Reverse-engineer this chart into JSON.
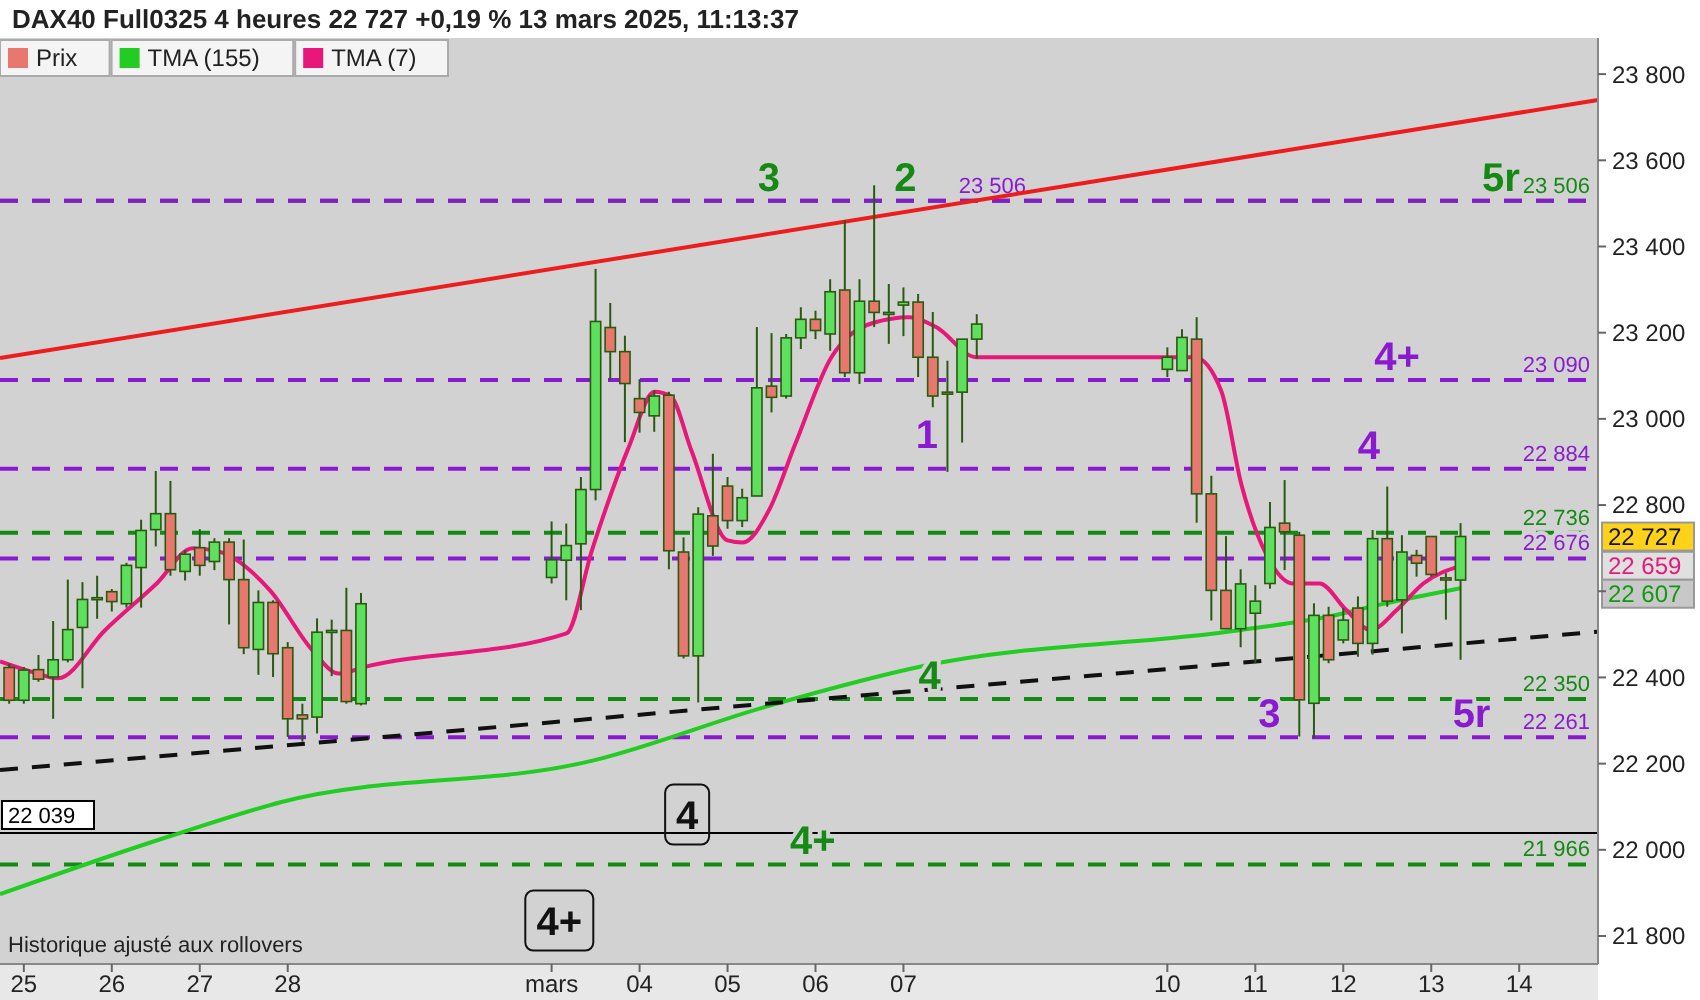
{
  "chart_data": {
    "type": "candlestick",
    "title": "DAX40 Full0325 4 heures 22 727 +0,19 % 13 mars 2025, 11:13:37",
    "legend": "top left",
    "xlim": [
      "2025-02-24T17:30",
      "2025-03-14T21:30"
    ],
    "ylim": [
      21735,
      23972
    ],
    "xticks": [
      {
        "value": "2025-02-25",
        "label": "25"
      },
      {
        "value": "2025-02-26",
        "label": "26"
      },
      {
        "value": "2025-02-27",
        "label": "27"
      },
      {
        "value": "2025-02-28",
        "label": "28"
      },
      {
        "value": "2025-03-03",
        "label": "mars"
      },
      {
        "value": "2025-03-04",
        "label": "04"
      },
      {
        "value": "2025-03-05",
        "label": "05"
      },
      {
        "value": "2025-03-06",
        "label": "06"
      },
      {
        "value": "2025-03-07",
        "label": "07"
      },
      {
        "value": "2025-03-10",
        "label": "10"
      },
      {
        "value": "2025-03-11",
        "label": "11"
      },
      {
        "value": "2025-03-12",
        "label": "12"
      },
      {
        "value": "2025-03-13",
        "label": "13"
      },
      {
        "value": "2025-03-14",
        "label": "14"
      }
    ],
    "yticks": [
      {
        "value": 21800,
        "label": "21 800"
      },
      {
        "value": 22000,
        "label": "22 000"
      },
      {
        "value": 22200,
        "label": "22 200"
      },
      {
        "value": 22400,
        "label": "22 400"
      },
      {
        "value": 22600,
        "label": null
      },
      {
        "value": 22800,
        "label": "22 800"
      },
      {
        "value": 23000,
        "label": "23 000"
      },
      {
        "value": 23200,
        "label": "23 200"
      },
      {
        "value": 23400,
        "label": "23 400"
      },
      {
        "value": 23600,
        "label": "23 600"
      },
      {
        "value": 23800,
        "label": "23 800"
      }
    ],
    "series": [
      {
        "name": "Prix",
        "color": "#e8776d",
        "x": [
          "2025-02-24T20:00",
          "2025-02-25T00:00",
          "2025-02-25T04:00",
          "2025-02-25T08:00",
          "2025-02-25T12:00",
          "2025-02-25T16:00",
          "2025-02-25T20:00",
          "2025-02-26T00:00",
          "2025-02-26T04:00",
          "2025-02-26T08:00",
          "2025-02-26T12:00",
          "2025-02-26T16:00",
          "2025-02-26T20:00",
          "2025-02-27T00:00",
          "2025-02-27T04:00",
          "2025-02-27T08:00",
          "2025-02-27T12:00",
          "2025-02-27T16:00",
          "2025-02-27T20:00",
          "2025-02-28T00:00",
          "2025-02-28T04:00",
          "2025-02-28T08:00",
          "2025-02-28T12:00",
          "2025-02-28T16:00",
          "2025-02-28T20:00",
          "2025-03-03T00:00",
          "2025-03-03T04:00",
          "2025-03-03T08:00",
          "2025-03-03T12:00",
          "2025-03-03T16:00",
          "2025-03-03T20:00",
          "2025-03-04T00:00",
          "2025-03-04T04:00",
          "2025-03-04T08:00",
          "2025-03-04T12:00",
          "2025-03-04T16:00",
          "2025-03-04T20:00",
          "2025-03-05T00:00",
          "2025-03-05T04:00",
          "2025-03-05T08:00",
          "2025-03-05T12:00",
          "2025-03-05T16:00",
          "2025-03-05T20:00",
          "2025-03-06T00:00",
          "2025-03-06T04:00",
          "2025-03-06T08:00",
          "2025-03-06T12:00",
          "2025-03-06T16:00",
          "2025-03-06T20:00",
          "2025-03-07T00:00",
          "2025-03-07T04:00",
          "2025-03-07T08:00",
          "2025-03-07T12:00",
          "2025-03-07T16:00",
          "2025-03-07T20:00",
          "2025-03-10T00:00",
          "2025-03-10T04:00",
          "2025-03-10T08:00",
          "2025-03-10T12:00",
          "2025-03-10T16:00",
          "2025-03-10T20:00",
          "2025-03-11T00:00",
          "2025-03-11T04:00",
          "2025-03-11T08:00",
          "2025-03-11T12:00",
          "2025-03-11T16:00",
          "2025-03-11T20:00",
          "2025-03-12T00:00",
          "2025-03-12T04:00",
          "2025-03-12T08:00",
          "2025-03-12T12:00",
          "2025-03-12T16:00",
          "2025-03-12T20:00",
          "2025-03-13T00:00",
          "2025-03-13T04:00",
          "2025-03-13T08:00"
        ],
        "ohlc": [
          [
            22423,
            22432,
            22339,
            22347
          ],
          [
            22347,
            22424,
            22339,
            22417
          ],
          [
            22418,
            22452,
            22390,
            22396
          ],
          [
            22401,
            22531,
            22304,
            22441
          ],
          [
            22441,
            22627,
            22435,
            22511
          ],
          [
            22516,
            22621,
            22375,
            22581
          ],
          [
            22581,
            22636,
            22536,
            22585
          ],
          [
            22599,
            22605,
            22553,
            22576
          ],
          [
            22571,
            22666,
            22562,
            22660
          ],
          [
            22655,
            22766,
            22562,
            22741
          ],
          [
            22743,
            22879,
            22704,
            22780
          ],
          [
            22780,
            22856,
            22636,
            22650
          ],
          [
            22646,
            22695,
            22625,
            22686
          ],
          [
            22701,
            22744,
            22636,
            22660
          ],
          [
            22669,
            22723,
            22649,
            22714
          ],
          [
            22714,
            22723,
            22523,
            22627
          ],
          [
            22627,
            22720,
            22454,
            22469
          ],
          [
            22465,
            22602,
            22406,
            22574
          ],
          [
            22574,
            22579,
            22401,
            22455
          ],
          [
            22469,
            22482,
            22262,
            22304
          ],
          [
            22313,
            22339,
            22251,
            22304
          ],
          [
            22308,
            22537,
            22270,
            22505
          ],
          [
            22505,
            22534,
            22403,
            22509
          ],
          [
            22509,
            22608,
            22339,
            22344
          ],
          [
            22339,
            22596,
            22335,
            22571
          ],
          [
            22632,
            22762,
            22618,
            22673
          ],
          [
            22672,
            22757,
            22579,
            22706
          ],
          [
            22710,
            22865,
            22556,
            22836
          ],
          [
            22836,
            23348,
            22811,
            23226
          ],
          [
            23212,
            23269,
            23091,
            23156
          ],
          [
            23156,
            23193,
            22946,
            23082
          ],
          [
            23047,
            23092,
            22968,
            23015
          ],
          [
            23007,
            23066,
            22970,
            23053
          ],
          [
            23055,
            23063,
            22651,
            22694
          ],
          [
            22691,
            22725,
            22444,
            22450
          ],
          [
            22450,
            22795,
            22342,
            22779
          ],
          [
            22775,
            22919,
            22682,
            22705
          ],
          [
            22844,
            22865,
            22745,
            22764
          ],
          [
            22764,
            22838,
            22749,
            22817
          ],
          [
            22821,
            23213,
            22821,
            23072
          ],
          [
            23076,
            23199,
            23015,
            23050
          ],
          [
            23053,
            23197,
            23047,
            23188
          ],
          [
            23188,
            23259,
            23162,
            23231
          ],
          [
            23231,
            23251,
            23185,
            23205
          ],
          [
            23197,
            23324,
            23158,
            23295
          ],
          [
            23299,
            23460,
            23097,
            23107
          ],
          [
            23107,
            23324,
            23081,
            23273
          ],
          [
            23273,
            23542,
            23213,
            23247
          ],
          [
            23243,
            23313,
            23174,
            23247
          ],
          [
            23264,
            23305,
            23192,
            23271
          ],
          [
            23271,
            23290,
            23097,
            23143
          ],
          [
            23143,
            23248,
            23027,
            23053
          ],
          [
            23062,
            23135,
            22877,
            23058
          ],
          [
            23062,
            23185,
            22945,
            23185
          ],
          [
            23185,
            23243,
            23140,
            23220
          ],
          [
            23115,
            23166,
            23097,
            23143
          ],
          [
            23112,
            23208,
            23112,
            23189
          ],
          [
            23185,
            23236,
            22759,
            22826
          ],
          [
            22826,
            22868,
            22532,
            22602
          ],
          [
            22602,
            22728,
            22512,
            22513
          ],
          [
            22513,
            22651,
            22470,
            22617
          ],
          [
            22549,
            22614,
            22433,
            22577
          ],
          [
            22618,
            22807,
            22606,
            22748
          ],
          [
            22758,
            22858,
            22649,
            22738
          ],
          [
            22730,
            22738,
            22263,
            22348
          ],
          [
            22340,
            22572,
            22260,
            22544
          ],
          [
            22544,
            22564,
            22433,
            22441
          ],
          [
            22487,
            22561,
            22479,
            22533
          ],
          [
            22561,
            22588,
            22448,
            22479
          ],
          [
            22479,
            22742,
            22453,
            22722
          ],
          [
            22722,
            22843,
            22564,
            22577
          ],
          [
            22580,
            22730,
            22502,
            22691
          ],
          [
            22683,
            22696,
            22634,
            22665
          ],
          [
            22727,
            22727,
            22634,
            22639
          ],
          [
            22631,
            22642,
            22534,
            22626
          ],
          [
            22626,
            22758,
            22441,
            22727
          ]
        ],
        "colors": [
          "#e8776d",
          "#5ee05e",
          "#e8776d",
          "#5ee05e",
          "#5ee05e",
          "#5ee05e",
          "#5ee05e",
          "#e8776d",
          "#5ee05e",
          "#5ee05e",
          "#5ee05e",
          "#e8776d",
          "#5ee05e",
          "#e8776d",
          "#5ee05e",
          "#e8776d",
          "#e8776d",
          "#5ee05e",
          "#e8776d",
          "#e8776d",
          "#e8776d",
          "#5ee05e",
          "#5ee05e",
          "#e8776d",
          "#5ee05e",
          "#5ee05e",
          "#5ee05e",
          "#5ee05e",
          "#5ee05e",
          "#e8776d",
          "#e8776d",
          "#e8776d",
          "#5ee05e",
          "#e8776d",
          "#e8776d",
          "#5ee05e",
          "#e8776d",
          "#e8776d",
          "#5ee05e",
          "#5ee05e",
          "#e8776d",
          "#5ee05e",
          "#5ee05e",
          "#e8776d",
          "#5ee05e",
          "#e8776d",
          "#5ee05e",
          "#e8776d",
          "#5ee05e",
          "#5ee05e",
          "#e8776d",
          "#e8776d",
          "#e8776d",
          "#5ee05e",
          "#5ee05e",
          "#5ee05e",
          "#5ee05e",
          "#e8776d",
          "#e8776d",
          "#e8776d",
          "#5ee05e",
          "#5ee05e",
          "#5ee05e",
          "#e8776d",
          "#e8776d",
          "#5ee05e",
          "#e8776d",
          "#5ee05e",
          "#e8776d",
          "#5ee05e",
          "#e8776d",
          "#5ee05e",
          "#e8776d",
          "#e8776d",
          "#e8776d",
          "#5ee05e"
        ]
      },
      {
        "name": "TMA (155)",
        "type": "line",
        "color": "#22cc22",
        "x": [
          "2025-02-24T17:30",
          "2025-02-26T16:00",
          "2025-02-27T22:20",
          "2025-03-03T11:45",
          "2025-03-05T11:15",
          "2025-03-07T05:45",
          "2025-03-10T20:10",
          "2025-03-11T20:25",
          "2025-03-12T10:35",
          "2025-03-13T08:00"
        ],
        "values": [
          21897,
          22032,
          22111,
          22208,
          22334,
          22427,
          22510,
          22542,
          22570,
          22607
        ]
      },
      {
        "name": "TMA (7)",
        "type": "line",
        "color": "#e8177a",
        "x": [
          "2025-02-24T17:30",
          "2025-02-25T02:10",
          "2025-02-25T09:20",
          "2025-02-25T22:05",
          "2025-02-26T12:15",
          "2025-02-26T22:05",
          "2025-02-27T05:15",
          "2025-02-27T19:10",
          "2025-02-28T06:45",
          "2025-02-28T13:55",
          "2025-02-28T20:50",
          "2025-03-03T04:05",
          "2025-03-03T11:00",
          "2025-03-03T21:05",
          "2025-03-04T04:05",
          "2025-03-04T08:25",
          "2025-03-04T14:10",
          "2025-03-05T00:00",
          "2025-03-05T04:05",
          "2025-03-05T11:15",
          "2025-03-05T18:30",
          "2025-03-06T04:20",
          "2025-03-06T15:50",
          "2025-03-07T01:40",
          "2025-03-07T08:55",
          "2025-03-07T19:55",
          "2025-03-10T07:25",
          "2025-03-10T14:40",
          "2025-03-10T20:10",
          "2025-03-11T03:20",
          "2025-03-11T10:20",
          "2025-03-11T17:30",
          "2025-03-12T00:45",
          "2025-03-12T07:25",
          "2025-03-12T14:40",
          "2025-03-12T21:50",
          "2025-03-13T08:00"
        ],
        "values": [
          22437,
          22413,
          22398,
          22509,
          22618,
          22700,
          22692,
          22602,
          22463,
          22409,
          22424,
          22502,
          22695,
          22935,
          23063,
          23053,
          22926,
          22718,
          22713,
          22787,
          22942,
          23143,
          23223,
          23236,
          23213,
          23143,
          23143,
          23066,
          22849,
          22680,
          22618,
          22618,
          22557,
          22510,
          22557,
          22618,
          22659
        ]
      },
      {
        "type": "line",
        "color": "#ee1c1c",
        "x": [
          "2025-02-24T17:30",
          "2025-03-14T21:30"
        ],
        "values": [
          23141,
          23740
        ]
      },
      {
        "type": "line",
        "color": "#111111",
        "line_style": "dashed",
        "x": [
          "2025-02-24T17:30",
          "2025-03-14T21:30"
        ],
        "values": [
          22185,
          22506
        ]
      }
    ],
    "ref_lines": [
      {
        "axis": "y",
        "value": 23506,
        "label": "23 506",
        "color": "#148a14",
        "line_style": "dashed"
      },
      {
        "axis": "y",
        "value": 22736,
        "label": "22 736",
        "color": "#148a14",
        "line_style": "dashed"
      },
      {
        "axis": "y",
        "value": 22350,
        "label": "22 350",
        "color": "#148a14",
        "line_style": "dashed"
      },
      {
        "axis": "y",
        "value": 21966,
        "label": "21 966",
        "color": "#148a14",
        "line_style": "dashed"
      },
      {
        "axis": "y",
        "value": 22039,
        "label": "22 039",
        "color": "#000000",
        "line_style": "solid"
      },
      {
        "axis": "y",
        "value": 23506,
        "label": "23 506",
        "color": "#8a1ad0",
        "line_style": "dashed"
      },
      {
        "axis": "y",
        "value": 23090,
        "label": "23 090",
        "color": "#8a1ad0",
        "line_style": "dashed"
      },
      {
        "axis": "y",
        "value": 22884,
        "label": "22 884",
        "color": "#8a1ad0",
        "line_style": "dashed"
      },
      {
        "axis": "y",
        "value": 22676,
        "label": "22 676",
        "color": "#8a1ad0",
        "line_style": "dashed"
      },
      {
        "axis": "y",
        "value": 22261,
        "label": "22 261",
        "color": "#8a1ad0",
        "line_style": "dashed"
      }
    ],
    "annotations": [
      {
        "text": "3",
        "x": "2025-03-05T11:15",
        "y": 23506
      },
      {
        "text": "2",
        "x": "2025-03-07T00:30",
        "y": 23506
      },
      {
        "text": "4+",
        "x": "2025-03-12T14:40",
        "y": 23090
      },
      {
        "text": "4",
        "x": "2025-03-12T07:00",
        "y": 22884
      },
      {
        "text": "5r",
        "x": "2025-03-13T19:00",
        "y": 23506
      },
      {
        "text": "4",
        "x": "2025-03-07T07:10",
        "y": 22350
      },
      {
        "text": "3",
        "x": "2025-03-11T03:50",
        "y": 22261
      },
      {
        "text": "5r",
        "x": "2025-03-13T11:00",
        "y": 22261
      },
      {
        "text": "4+",
        "x": "2025-03-05T23:15",
        "y": 21966
      },
      "1",
      "4",
      "4+",
      "22 727",
      "22 659",
      "22 607",
      "Historique ajusté aux rollovers"
    ]
  }
}
